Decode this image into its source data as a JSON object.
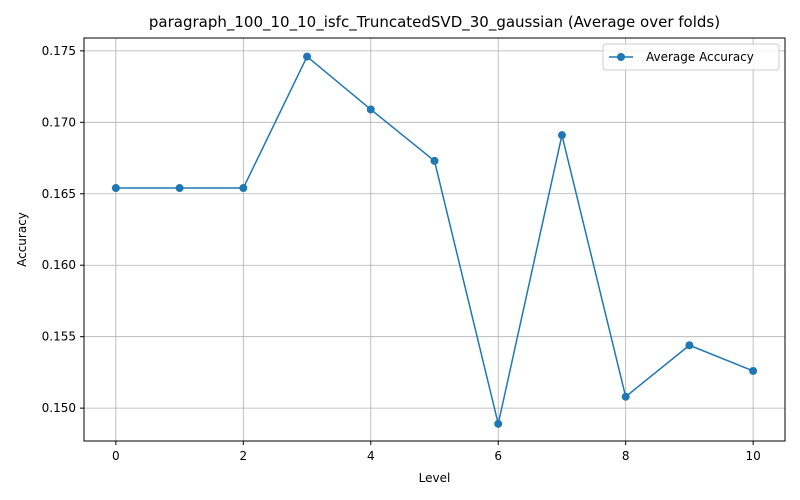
{
  "chart_data": {
    "type": "line",
    "title": "paragraph_100_10_10_isfc_TruncatedSVD_30_gaussian (Average over folds)",
    "xlabel": "Level",
    "ylabel": "Accuracy",
    "xlim": [
      -0.5,
      10.5
    ],
    "ylim": [
      0.1477,
      0.1759
    ],
    "x_ticks": [
      0,
      2,
      4,
      6,
      8,
      10
    ],
    "y_ticks": [
      0.15,
      0.155,
      0.16,
      0.165,
      0.17,
      0.175
    ],
    "x_tick_labels": [
      "0",
      "2",
      "4",
      "6",
      "8",
      "10"
    ],
    "y_tick_labels": [
      "0.150",
      "0.155",
      "0.160",
      "0.165",
      "0.170",
      "0.175"
    ],
    "grid": true,
    "legend_position": "top-right",
    "series": [
      {
        "name": "Average Accuracy",
        "color": "#1f77b4",
        "marker": "circle",
        "x": [
          0,
          1,
          2,
          3,
          4,
          5,
          6,
          7,
          8,
          9,
          10
        ],
        "y": [
          0.1654,
          0.1654,
          0.1654,
          0.1746,
          0.1709,
          0.1673,
          0.1489,
          0.1691,
          0.1508,
          0.1544,
          0.1526
        ]
      }
    ]
  }
}
